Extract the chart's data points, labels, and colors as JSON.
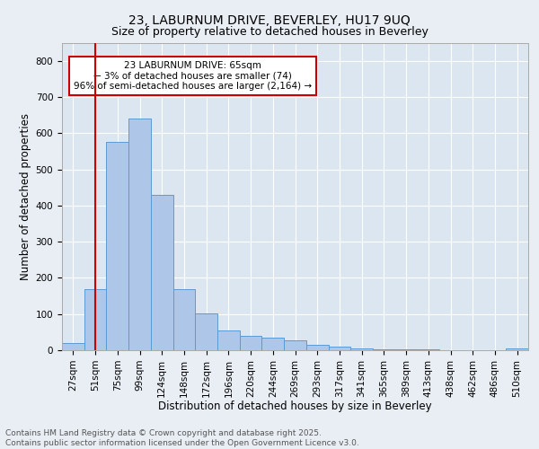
{
  "title1": "23, LABURNUM DRIVE, BEVERLEY, HU17 9UQ",
  "title2": "Size of property relative to detached houses in Beverley",
  "xlabel": "Distribution of detached houses by size in Beverley",
  "ylabel": "Number of detached properties",
  "categories": [
    "27sqm",
    "51sqm",
    "75sqm",
    "99sqm",
    "124sqm",
    "148sqm",
    "172sqm",
    "196sqm",
    "220sqm",
    "244sqm",
    "269sqm",
    "293sqm",
    "317sqm",
    "341sqm",
    "365sqm",
    "389sqm",
    "413sqm",
    "438sqm",
    "462sqm",
    "486sqm",
    "510sqm"
  ],
  "values": [
    20,
    170,
    575,
    640,
    430,
    170,
    102,
    55,
    40,
    35,
    28,
    15,
    10,
    5,
    3,
    2,
    2,
    1,
    1,
    0,
    5
  ],
  "bar_color": "#aec6e8",
  "bar_edge_color": "#5a9bd5",
  "vline_x": 1.0,
  "vline_color": "#cc0000",
  "annotation_text": "23 LABURNUM DRIVE: 65sqm\n← 3% of detached houses are smaller (74)\n96% of semi-detached houses are larger (2,164) →",
  "annotation_box_color": "#ffffff",
  "annotation_box_edge": "#cc0000",
  "ylim": [
    0,
    850
  ],
  "yticks": [
    0,
    100,
    200,
    300,
    400,
    500,
    600,
    700,
    800
  ],
  "bg_color": "#e8eef4",
  "plot_bg_color": "#dce6f0",
  "footnote": "Contains HM Land Registry data © Crown copyright and database right 2025.\nContains public sector information licensed under the Open Government Licence v3.0.",
  "title1_fontsize": 10,
  "title2_fontsize": 9,
  "xlabel_fontsize": 8.5,
  "ylabel_fontsize": 8.5,
  "tick_fontsize": 7.5,
  "annotation_fontsize": 7.5,
  "footnote_fontsize": 6.5
}
